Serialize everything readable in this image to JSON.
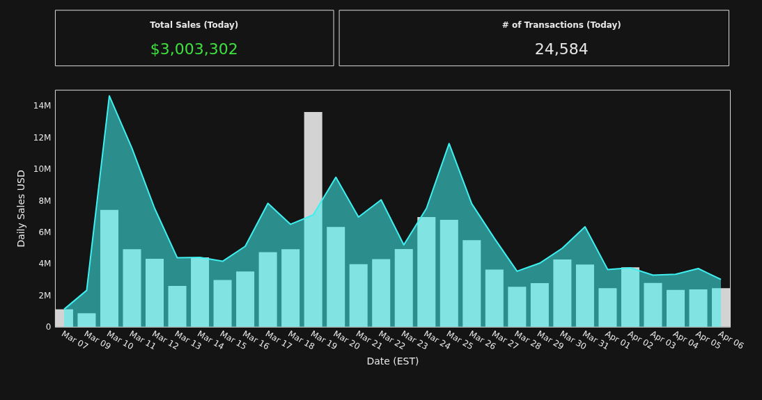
{
  "chart_data": [
    {
      "type": "other",
      "title": "Total Sales (Today)",
      "annotations": [
        "$3,003,302"
      ],
      "color": "#3ee03e"
    },
    {
      "type": "other",
      "title": "# of Transactions (Today)",
      "annotations": [
        "24,584"
      ],
      "color": "#e6e6e6"
    },
    {
      "type": "bar",
      "xlabel": "Date (EST)",
      "ylabel": "Daily Sales USD",
      "categories": [
        "Mar 07",
        "Mar 09",
        "Mar 10",
        "Mar 11",
        "Mar 12",
        "Mar 13",
        "Mar 14",
        "Mar 15",
        "Mar 16",
        "Mar 17",
        "Mar 18",
        "Mar 19",
        "Mar 20",
        "Mar 21",
        "Mar 22",
        "Mar 23",
        "Mar 24",
        "Mar 25",
        "Mar 26",
        "Mar 27",
        "Mar 28",
        "Mar 29",
        "Mar 30",
        "Mar 31",
        "Apr 01",
        "Apr 02",
        "Apr 03",
        "Apr 04",
        "Apr 05",
        "Apr 06"
      ],
      "series": [
        {
          "type": "bar",
          "color": "#d3d3d3",
          "values": [
            1110000,
            860000,
            7400000,
            4910000,
            4310000,
            2590000,
            4400000,
            2970000,
            3500000,
            4730000,
            4910000,
            13600000,
            6320000,
            3970000,
            4290000,
            4920000,
            6950000,
            6770000,
            5480000,
            3620000,
            2530000,
            2770000,
            4260000,
            3940000,
            2450000,
            3770000,
            2780000,
            2340000,
            2370000,
            2450000
          ]
        },
        {
          "type": "area",
          "color": "#3ff0f0",
          "values": [
            1110000,
            2310000,
            14620000,
            11300000,
            7500000,
            4370000,
            4400000,
            4150000,
            5100000,
            7820000,
            6490000,
            7080000,
            9470000,
            6950000,
            8040000,
            5190000,
            7500000,
            11600000,
            7790000,
            5600000,
            3520000,
            4030000,
            4980000,
            6330000,
            3630000,
            3740000,
            3270000,
            3330000,
            3690000,
            3000000
          ]
        }
      ],
      "ylim": [
        0,
        15000000
      ],
      "yticks": [
        0,
        {
          "value": 2000000,
          "label": "2M"
        },
        {
          "value": 4000000,
          "label": "4M"
        },
        {
          "value": 6000000,
          "label": "6M"
        },
        {
          "value": 8000000,
          "label": "8M"
        },
        {
          "value": 10000000,
          "label": "10M"
        },
        {
          "value": 12000000,
          "label": "12M"
        },
        {
          "value": 14000000,
          "label": "14M"
        }
      ],
      "grid": false
    }
  ]
}
